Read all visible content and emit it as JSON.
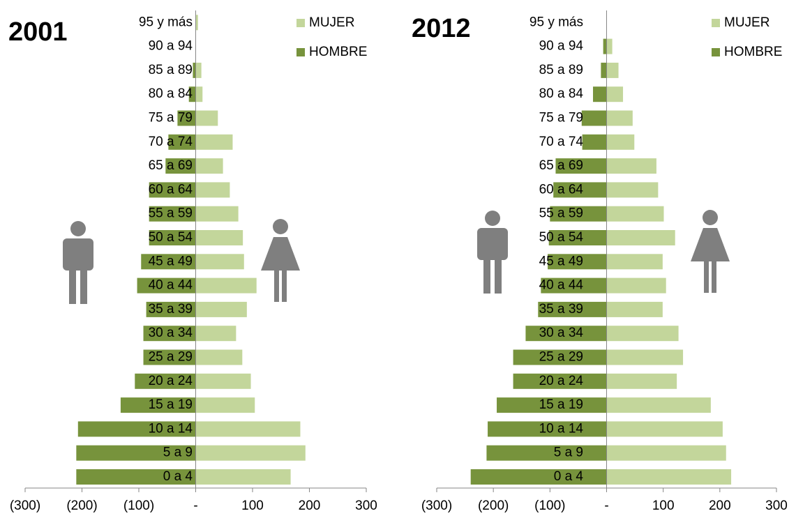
{
  "chart_data": [
    {
      "type": "pyramid",
      "title": "2001",
      "categories": [
        "0 a 4",
        "5 a 9",
        "10 a 14",
        "15 a 19",
        "20 a 24",
        "25 a 29",
        "30 a 34",
        "35 a 39",
        "40 a 44",
        "45 a 49",
        "50 a 54",
        "55 a 59",
        "60 a 64",
        "65 a 69",
        "70 a 74",
        "75 a 79",
        "80 a 84",
        "85 a 89",
        "90 a 94",
        "95  y más"
      ],
      "series": [
        {
          "name": "MUJER",
          "color": "#c3d69b",
          "values": [
            167,
            193,
            184,
            104,
            97,
            82,
            71,
            90,
            107,
            85,
            83,
            75,
            60,
            48,
            65,
            39,
            12,
            10,
            0,
            4
          ]
        },
        {
          "name": "HOMBRE",
          "color": "#77933c",
          "values": [
            -210,
            -210,
            -207,
            -132,
            -107,
            -92,
            -92,
            -87,
            -103,
            -96,
            -82,
            -82,
            -82,
            -53,
            -48,
            -32,
            -12,
            -5,
            0,
            0
          ]
        }
      ],
      "xlim": [
        -300,
        300
      ],
      "xticks": [
        {
          "value": -300,
          "label": "(300)"
        },
        {
          "value": -200,
          "label": "(200)"
        },
        {
          "value": -100,
          "label": "(100)"
        },
        {
          "value": 0,
          "label": "-"
        },
        100,
        200,
        300
      ],
      "legend": "upper right"
    },
    {
      "type": "pyramid",
      "title": "2012",
      "categories": [
        "0 a 4",
        "5 a 9",
        "10 a 14",
        "15 a 19",
        "20 a 24",
        "25 a 29",
        "30 a 34",
        "35 a 39",
        "40 a 44",
        "45 a 49",
        "50 a 54",
        "55 a 59",
        "60 a 64",
        "65 a 69",
        "70 a 74",
        "75 a 79",
        "80 a 84",
        "85 a 89",
        "90 a 94",
        "95  y más"
      ],
      "series": [
        {
          "name": "MUJER",
          "color": "#c3d69b",
          "values": [
            220,
            211,
            205,
            184,
            124,
            135,
            127,
            99,
            105,
            99,
            121,
            101,
            91,
            88,
            49,
            46,
            29,
            21,
            10,
            0
          ]
        },
        {
          "name": "HOMBRE",
          "color": "#77933c",
          "values": [
            -240,
            -212,
            -210,
            -194,
            -165,
            -165,
            -143,
            -121,
            -116,
            -104,
            -102,
            -100,
            -94,
            -90,
            -43,
            -44,
            -24,
            -10,
            -6,
            0
          ]
        }
      ],
      "xlim": [
        -300,
        300
      ],
      "xticks": [
        {
          "value": -300,
          "label": "(300)"
        },
        {
          "value": -200,
          "label": "(200)"
        },
        {
          "value": -100,
          "label": "(100)"
        },
        {
          "value": 0,
          "label": "-"
        },
        100,
        200,
        300
      ],
      "legend": "upper right"
    }
  ]
}
